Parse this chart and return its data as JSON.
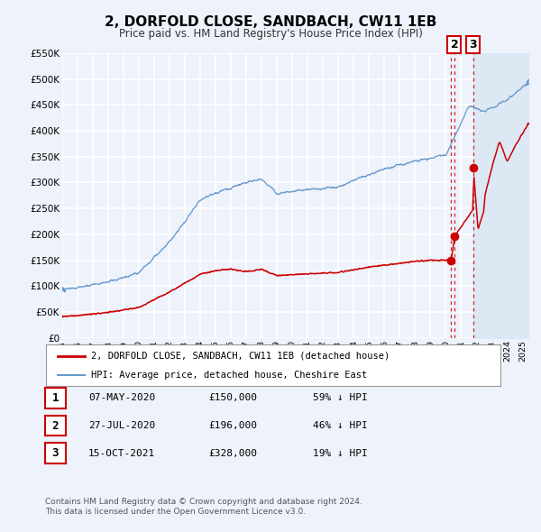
{
  "title": "2, DORFOLD CLOSE, SANDBACH, CW11 1EB",
  "subtitle": "Price paid vs. HM Land Registry's House Price Index (HPI)",
  "legend_label_red": "2, DORFOLD CLOSE, SANDBACH, CW11 1EB (detached house)",
  "legend_label_blue": "HPI: Average price, detached house, Cheshire East",
  "ylim": [
    0,
    550000
  ],
  "yticks": [
    0,
    50000,
    100000,
    150000,
    200000,
    250000,
    300000,
    350000,
    400000,
    450000,
    500000,
    550000
  ],
  "ytick_labels": [
    "£0",
    "£50K",
    "£100K",
    "£150K",
    "£200K",
    "£250K",
    "£300K",
    "£350K",
    "£400K",
    "£450K",
    "£500K",
    "£550K"
  ],
  "xlim_start": 1995.0,
  "xlim_end": 2025.5,
  "background_color": "#eef2fb",
  "plot_bg_color": "#eef2fb",
  "grid_color": "#ffffff",
  "red_color": "#cc0000",
  "blue_color": "#6699cc",
  "shade_color": "#dde8f5",
  "transactions": [
    {
      "num": 1,
      "date_x": 2020.354,
      "price": 150000,
      "label": "07-MAY-2020",
      "price_label": "£150,000",
      "pct_label": "59% ↓ HPI"
    },
    {
      "num": 2,
      "date_x": 2020.562,
      "price": 196000,
      "label": "27-JUL-2020",
      "price_label": "£196,000",
      "pct_label": "46% ↓ HPI"
    },
    {
      "num": 3,
      "date_x": 2021.788,
      "price": 328000,
      "label": "15-OCT-2021",
      "price_label": "£328,000",
      "pct_label": "19% ↓ HPI"
    }
  ],
  "footer_line1": "Contains HM Land Registry data © Crown copyright and database right 2024.",
  "footer_line2": "This data is licensed under the Open Government Licence v3.0."
}
